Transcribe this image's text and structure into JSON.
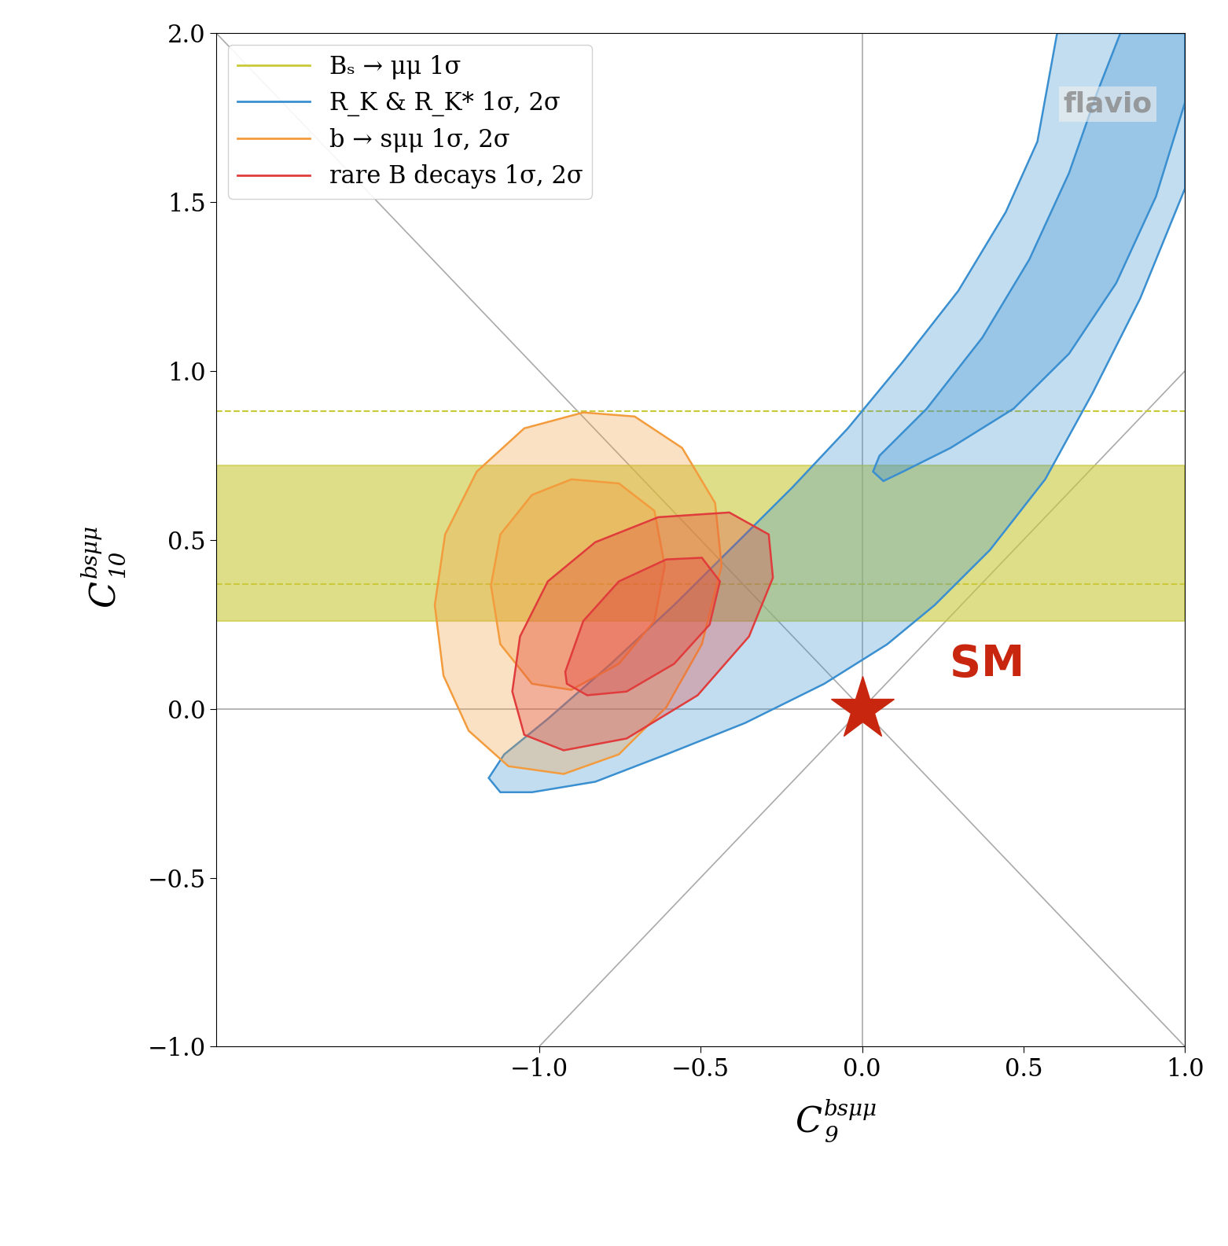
{
  "chart_data": {
    "type": "contour",
    "x_label": {
      "base": "C",
      "sub": "9",
      "sup": "bsμμ"
    },
    "y_label": {
      "base": "C",
      "sub": "10",
      "sup": "bsμμ"
    },
    "xlim": [
      -2.0,
      1.0
    ],
    "ylim": [
      -1.0,
      2.0
    ],
    "xticks": [
      {
        "value": -1.0,
        "label": "−1.0"
      },
      {
        "value": -0.5,
        "label": "−0.5"
      },
      {
        "value": 0.0,
        "label": "0.0"
      },
      {
        "value": 0.5,
        "label": "0.5"
      },
      {
        "value": 1.0,
        "label": "1.0"
      }
    ],
    "yticks": [
      {
        "value": -1.0,
        "label": "−1.0"
      },
      {
        "value": -0.5,
        "label": "−0.5"
      },
      {
        "value": 0.0,
        "label": "0.0"
      },
      {
        "value": 0.5,
        "label": "0.5"
      },
      {
        "value": 1.0,
        "label": "1.0"
      },
      {
        "value": 1.5,
        "label": "1.5"
      },
      {
        "value": 2.0,
        "label": "2.0"
      }
    ],
    "legend": "upper left",
    "watermark": "flavio",
    "point": {
      "label": "SM",
      "x": 0.0,
      "y": 0.0,
      "color": "#c8260f",
      "marker": "star"
    },
    "series": [
      {
        "name": "Bₛ → μμ 1σ",
        "color": "#c9c93a",
        "band": {
          "1σ": [
            0.26,
            0.72
          ]
        },
        "dashed_band": [
          0.37,
          0.88
        ]
      },
      {
        "name": "R_K & R_K* 1σ, 2σ",
        "color": "#3a8fd0",
        "contours": {
          "2σ": [
            [
              -1.156,
              -0.205
            ],
            [
              -1.108,
              -0.135
            ],
            [
              -0.973,
              -0.03
            ],
            [
              -0.778,
              0.133
            ],
            [
              -0.582,
              0.307
            ],
            [
              -0.386,
              0.493
            ],
            [
              -0.215,
              0.656
            ],
            [
              -0.044,
              0.83
            ],
            [
              0.127,
              1.028
            ],
            [
              0.298,
              1.237
            ],
            [
              0.445,
              1.47
            ],
            [
              0.543,
              1.679
            ],
            [
              0.604,
              2.0
            ],
            [
              1.0,
              2.0
            ],
            [
              1.0,
              1.54
            ],
            [
              0.861,
              1.214
            ],
            [
              0.714,
              0.935
            ],
            [
              0.567,
              0.679
            ],
            [
              0.396,
              0.47
            ],
            [
              0.225,
              0.307
            ],
            [
              0.078,
              0.191
            ],
            [
              -0.117,
              0.074
            ],
            [
              -0.362,
              -0.042
            ],
            [
              -0.606,
              -0.135
            ],
            [
              -0.826,
              -0.216
            ],
            [
              -1.022,
              -0.247
            ],
            [
              -1.12,
              -0.247
            ]
          ],
          "1σ": [
            [
              0.034,
              0.702
            ],
            [
              0.054,
              0.749
            ],
            [
              0.2,
              0.888
            ],
            [
              0.372,
              1.098
            ],
            [
              0.518,
              1.33
            ],
            [
              0.641,
              1.586
            ],
            [
              0.726,
              1.819
            ],
            [
              0.8,
              2.0
            ],
            [
              1.0,
              2.0
            ],
            [
              1.0,
              1.795
            ],
            [
              0.91,
              1.516
            ],
            [
              0.787,
              1.26
            ],
            [
              0.641,
              1.051
            ],
            [
              0.469,
              0.888
            ],
            [
              0.274,
              0.772
            ],
            [
              0.127,
              0.702
            ],
            [
              0.066,
              0.674
            ]
          ]
        }
      },
      {
        "name": "b → sμμ 1σ, 2σ",
        "color": "#f39c3e",
        "contours": {
          "2σ": [
            [
              -1.323,
              0.307
            ],
            [
              -1.291,
              0.516
            ],
            [
              -1.193,
              0.702
            ],
            [
              -1.046,
              0.83
            ],
            [
              -0.863,
              0.877
            ],
            [
              -0.704,
              0.865
            ],
            [
              -0.557,
              0.772
            ],
            [
              -0.455,
              0.609
            ],
            [
              -0.435,
              0.423
            ],
            [
              -0.496,
              0.191
            ],
            [
              -0.606,
              0.005
            ],
            [
              -0.753,
              -0.135
            ],
            [
              -0.924,
              -0.193
            ],
            [
              -1.095,
              -0.17
            ],
            [
              -1.218,
              -0.065
            ],
            [
              -1.296,
              0.098
            ]
          ],
          "1σ": [
            [
              -1.149,
              0.365
            ],
            [
              -1.12,
              0.516
            ],
            [
              -1.022,
              0.633
            ],
            [
              -0.9,
              0.679
            ],
            [
              -0.753,
              0.667
            ],
            [
              -0.643,
              0.586
            ],
            [
              -0.611,
              0.423
            ],
            [
              -0.643,
              0.26
            ],
            [
              -0.753,
              0.133
            ],
            [
              -0.9,
              0.056
            ],
            [
              -1.022,
              0.074
            ],
            [
              -1.12,
              0.191
            ]
          ]
        }
      },
      {
        "name": "rare B decays 1σ, 2σ",
        "color": "#e03c3c",
        "contours": {
          "2σ": [
            [
              -1.083,
              0.051
            ],
            [
              -1.059,
              0.214
            ],
            [
              -0.973,
              0.377
            ],
            [
              -0.826,
              0.493
            ],
            [
              -0.631,
              0.567
            ],
            [
              -0.411,
              0.581
            ],
            [
              -0.289,
              0.516
            ],
            [
              -0.276,
              0.388
            ],
            [
              -0.35,
              0.214
            ],
            [
              -0.509,
              0.04
            ],
            [
              -0.729,
              -0.088
            ],
            [
              -0.924,
              -0.123
            ],
            [
              -1.046,
              -0.077
            ]
          ],
          "1σ": [
            [
              -0.919,
              0.109
            ],
            [
              -0.863,
              0.26
            ],
            [
              -0.753,
              0.377
            ],
            [
              -0.606,
              0.442
            ],
            [
              -0.496,
              0.447
            ],
            [
              -0.44,
              0.377
            ],
            [
              -0.472,
              0.249
            ],
            [
              -0.582,
              0.133
            ],
            [
              -0.729,
              0.051
            ],
            [
              -0.851,
              0.04
            ],
            [
              -0.914,
              0.074
            ]
          ]
        }
      }
    ]
  }
}
